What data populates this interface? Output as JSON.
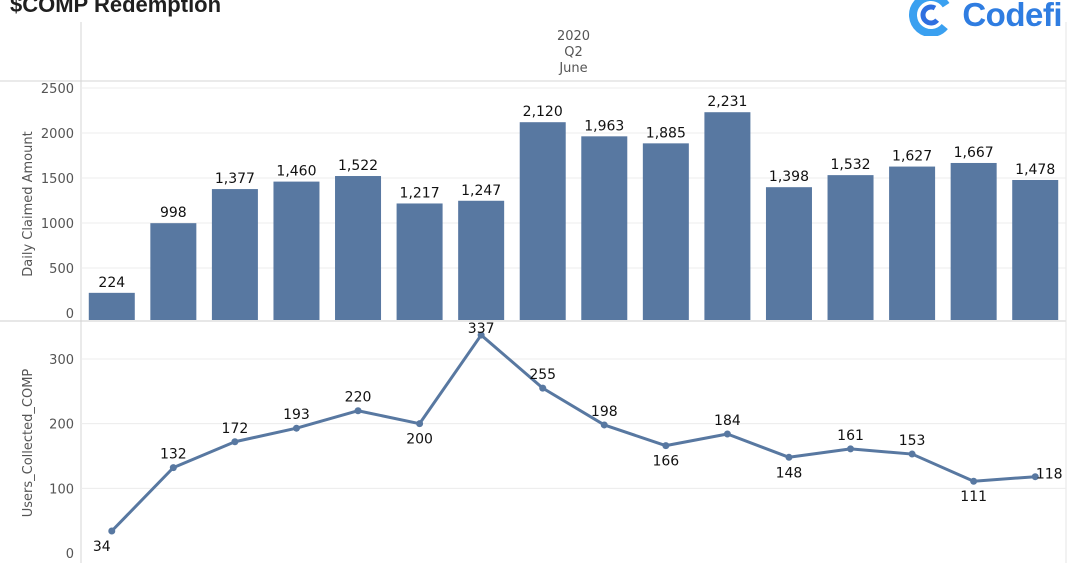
{
  "title": "$COMP Redemption",
  "logo": {
    "text": "Codefi",
    "icon": "codefi-logo-icon",
    "color": "#2f7de1"
  },
  "colors": {
    "bar": "#5878a1",
    "line": "#5878a1",
    "grid": "#ececec",
    "axis": "#d0d0d0"
  },
  "chart_data": [
    {
      "type": "bar",
      "header": [
        "2020",
        "Q2",
        "June"
      ],
      "ylabel": "Daily Claimed Amount",
      "ylim": [
        0,
        2500
      ],
      "yticks": [
        0,
        500,
        1000,
        1500,
        2000,
        2500
      ],
      "tick_labels": [
        "0",
        "500",
        "1000",
        "1500",
        "2000",
        "2500"
      ],
      "values": [
        224,
        998,
        1377,
        1460,
        1522,
        1217,
        1247,
        2120,
        1963,
        1885,
        2231,
        1398,
        1532,
        1627,
        1667,
        1478
      ],
      "labels": [
        "224",
        "998",
        "1,377",
        "1,460",
        "1,522",
        "1,217",
        "1,247",
        "2,120",
        "1,963",
        "1,885",
        "2,231",
        "1,398",
        "1,532",
        "1,627",
        "1,667",
        "1,478"
      ]
    },
    {
      "type": "line",
      "ylabel": "Users_Collected_COMP",
      "ylim": [
        0,
        340
      ],
      "yticks": [
        0,
        100,
        200,
        300
      ],
      "tick_labels": [
        "0",
        "100",
        "200",
        "300"
      ],
      "values": [
        34,
        132,
        172,
        193,
        220,
        200,
        337,
        255,
        198,
        166,
        184,
        148,
        161,
        153,
        111,
        118
      ],
      "labels": [
        "34",
        "132",
        "172",
        "193",
        "220",
        "200",
        "337",
        "255",
        "198",
        "166",
        "184",
        "148",
        "161",
        "153",
        "111",
        "118"
      ]
    }
  ]
}
